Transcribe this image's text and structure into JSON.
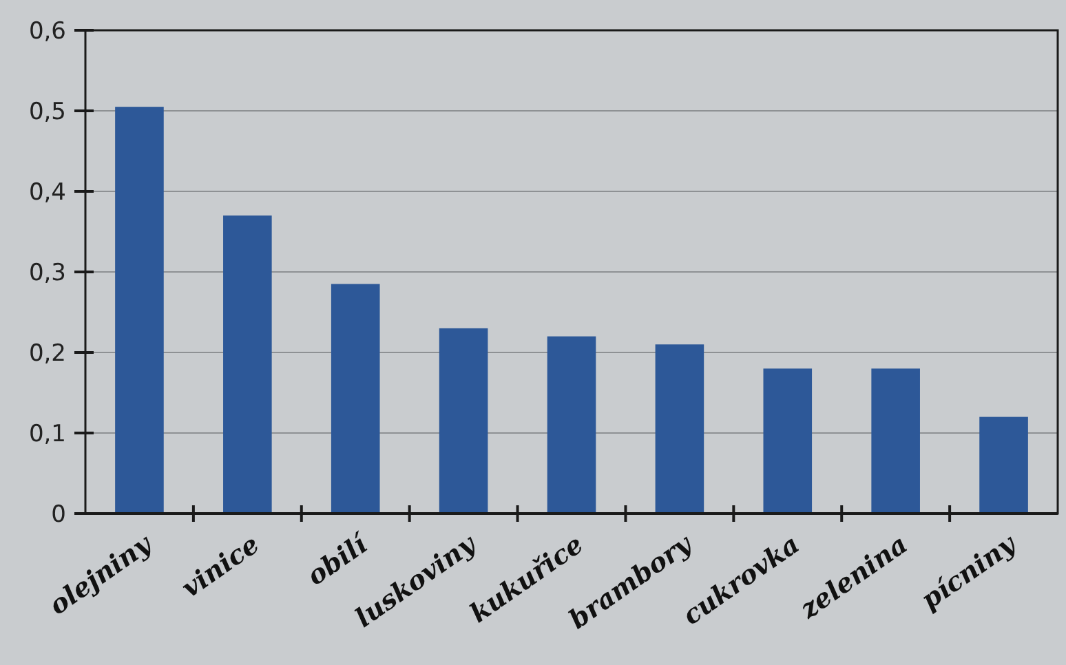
{
  "chart_data": {
    "type": "bar",
    "categories": [
      "olejniny",
      "vinice",
      "obilí",
      "luskoviny",
      "kukuřice",
      "brambory",
      "cukrovka",
      "zelenina",
      "pícniny"
    ],
    "values": [
      0.505,
      0.37,
      0.285,
      0.23,
      0.22,
      0.21,
      0.18,
      0.18,
      0.12
    ],
    "color": "#2d5898",
    "ylim": [
      0,
      0.6
    ],
    "yticks": [
      0,
      {
        "value": 0.1,
        "label": "0,1"
      },
      {
        "value": 0.2,
        "label": "0,2"
      },
      {
        "value": 0.3,
        "label": "0,3"
      },
      {
        "value": 0.4,
        "label": "0,4"
      },
      {
        "value": 0.5,
        "label": "0,5"
      },
      {
        "value": 0.6,
        "label": "0,6"
      }
    ],
    "grid": "y"
  }
}
